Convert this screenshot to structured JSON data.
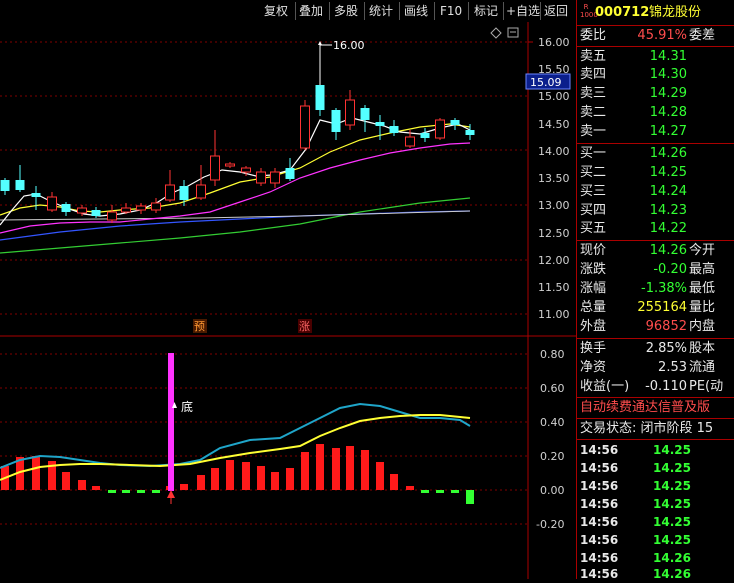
{
  "toolbar": {
    "items": [
      "复权",
      "叠加",
      "多股",
      "统计",
      "画线",
      "F10",
      "标记",
      "+自选",
      "返回"
    ]
  },
  "stock": {
    "badge_top": "R",
    "badge_bottom": "1000",
    "code": "000712",
    "name": "锦龙股份"
  },
  "main_chart": {
    "price_axis": [
      "16.00",
      "15.50",
      "15.00",
      "14.50",
      "14.00",
      "13.50",
      "13.00",
      "12.50",
      "12.00",
      "11.50",
      "11.00"
    ],
    "current_price_tag": "15.09",
    "high_marker": "16.00",
    "signals": [
      "预",
      "涨"
    ]
  },
  "indicator_chart": {
    "axis": [
      "0.80",
      "0.60",
      "0.40",
      "0.20",
      "0.00",
      "-0.20"
    ],
    "bottom_label": "底"
  },
  "quote": {
    "weibi_label": "委比",
    "weibi_value": "45.91%",
    "weicha_label": "委差",
    "asks": [
      {
        "label": "卖五",
        "price": "14.31"
      },
      {
        "label": "卖四",
        "price": "14.30"
      },
      {
        "label": "卖三",
        "price": "14.29"
      },
      {
        "label": "卖二",
        "price": "14.28"
      },
      {
        "label": "卖一",
        "price": "14.27"
      }
    ],
    "bids": [
      {
        "label": "买一",
        "price": "14.26"
      },
      {
        "label": "买二",
        "price": "14.25"
      },
      {
        "label": "买三",
        "price": "14.24"
      },
      {
        "label": "买四",
        "price": "14.23"
      },
      {
        "label": "买五",
        "price": "14.22"
      }
    ],
    "stats": [
      {
        "label": "现价",
        "value": "14.26",
        "extra": "今开"
      },
      {
        "label": "涨跌",
        "value": "-0.20",
        "extra": "最高"
      },
      {
        "label": "涨幅",
        "value": "-1.38%",
        "extra": "最低"
      },
      {
        "label": "总量",
        "value": "255164",
        "extra": "量比"
      },
      {
        "label": "外盘",
        "value": "96852",
        "extra": "内盘"
      }
    ],
    "fundamentals": [
      {
        "label": "换手",
        "value": "2.85%",
        "extra": "股本"
      },
      {
        "label": "净资",
        "value": "2.53",
        "extra": "流通"
      },
      {
        "label": "收益(一)",
        "value": "-0.110",
        "extra": "PE(动"
      }
    ],
    "marquee": "自动续费通达信普及版",
    "trade_status": "交易状态: 闭市阶段 15"
  },
  "ticks": [
    {
      "time": "14:56",
      "price": "14.25"
    },
    {
      "time": "14:56",
      "price": "14.25"
    },
    {
      "time": "14:56",
      "price": "14.25"
    },
    {
      "time": "14:56",
      "price": "14.25"
    },
    {
      "time": "14:56",
      "price": "14.25"
    },
    {
      "time": "14:56",
      "price": "14.25"
    },
    {
      "time": "14:56",
      "price": "14.26"
    },
    {
      "time": "14:56",
      "price": "14.26"
    }
  ],
  "colors": {
    "up": "#ff3333",
    "down": "#54ffff",
    "ma5": "#ffffff",
    "ma10": "#ffff33",
    "ma20": "#ff33ff",
    "ma60": "#33cc33",
    "ma120": "#3355ff",
    "ind_fast": "#1fa5c9",
    "ind_slow": "#ffff33"
  }
}
